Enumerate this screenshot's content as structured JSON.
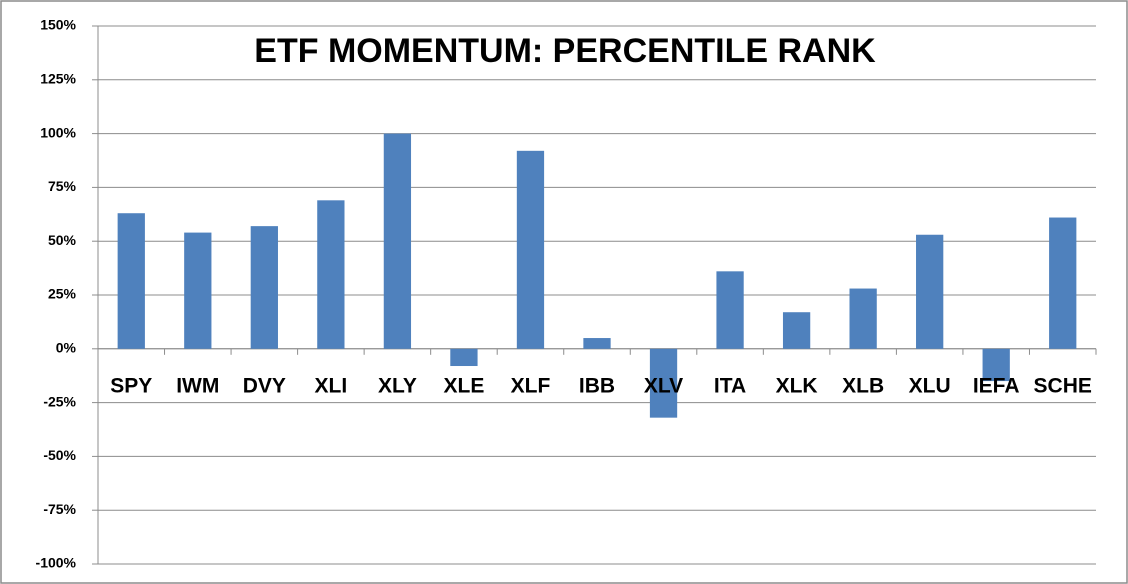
{
  "chart_data": {
    "type": "bar",
    "title": "ETF MOMENTUM: PERCENTILE RANK",
    "categories": [
      "SPY",
      "IWM",
      "DVY",
      "XLI",
      "XLY",
      "XLE",
      "XLF",
      "IBB",
      "XLV",
      "ITA",
      "XLK",
      "XLB",
      "XLU",
      "IEFA",
      "SCHE"
    ],
    "values": [
      63,
      54,
      57,
      69,
      100,
      -8,
      92,
      5,
      -32,
      36,
      17,
      28,
      53,
      -15,
      61
    ],
    "color": "#4f81bd",
    "ylim": [
      -100,
      150
    ],
    "yticks": [
      {
        "value": -100,
        "label": "-100%"
      },
      {
        "value": -75,
        "label": "-75%"
      },
      {
        "value": -50,
        "label": "-50%"
      },
      {
        "value": -25,
        "label": "-25%"
      },
      {
        "value": 0,
        "label": "0%"
      },
      {
        "value": 25,
        "label": "25%"
      },
      {
        "value": 50,
        "label": "50%"
      },
      {
        "value": 75,
        "label": "75%"
      },
      {
        "value": 100,
        "label": "100%"
      },
      {
        "value": 125,
        "label": "125%"
      },
      {
        "value": 150,
        "label": "150%"
      }
    ],
    "grid": true
  }
}
